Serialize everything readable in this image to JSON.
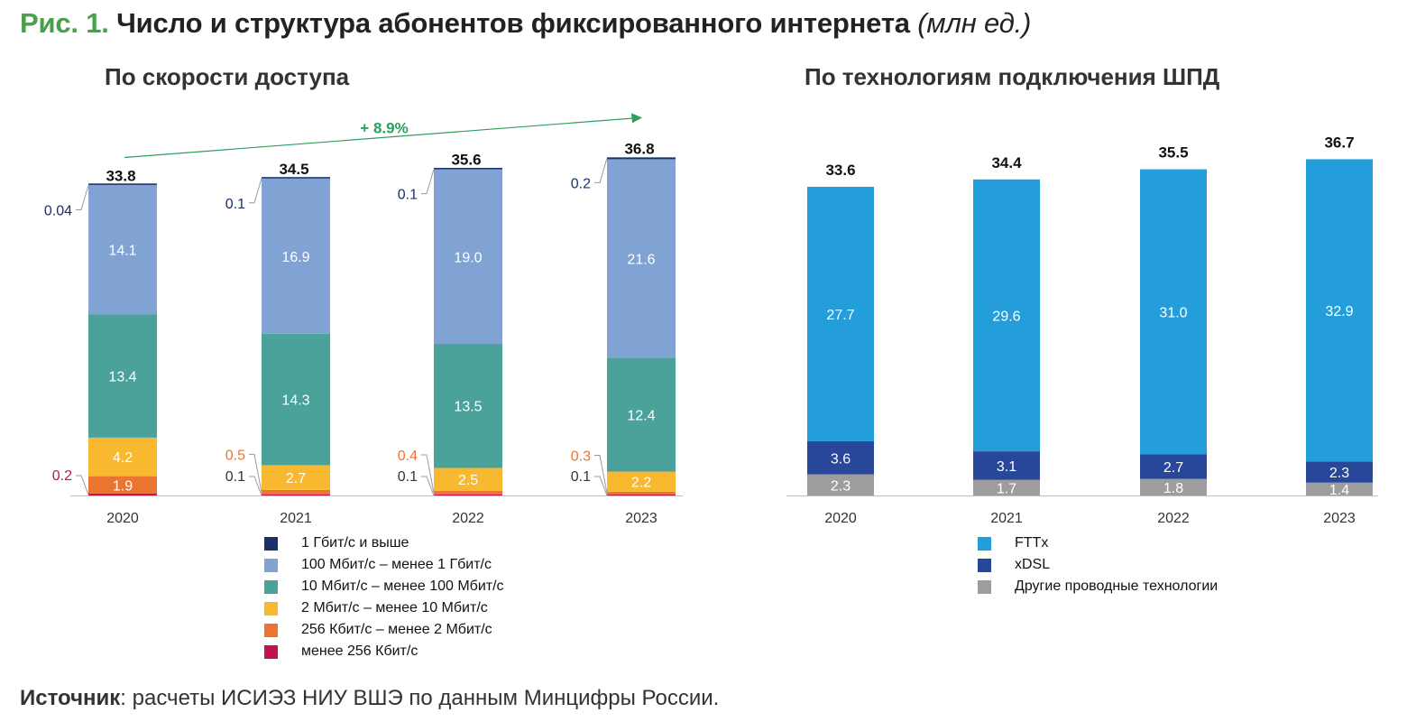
{
  "title": {
    "prefix": "Рис. 1.",
    "main": "Число и структура абонентов фиксированного интернета",
    "unit": "(млн ед.)"
  },
  "source": {
    "label": "Источник",
    "text": ": расчеты ИСИЭЗ НИУ ВШЭ по данным Минцифры России."
  },
  "chart_data": [
    {
      "type": "bar",
      "stacked": true,
      "title": "По скорости доступа",
      "categories": [
        "2020",
        "2021",
        "2022",
        "2023"
      ],
      "totals": [
        "33.8",
        "34.5",
        "35.6",
        "36.8"
      ],
      "growth_label": "+ 8.9%",
      "series": [
        {
          "name": "менее 256 Кбит/с",
          "color": "#c0134f",
          "values": [
            0.2,
            0.1,
            0.1,
            0.1
          ],
          "labels": [
            "0.2",
            "0.1",
            "0.1",
            "0.1"
          ]
        },
        {
          "name": "256 Кбит/с – менее 2 Мбит/с",
          "color": "#ec7431",
          "values": [
            1.9,
            0.5,
            0.4,
            0.3
          ],
          "labels": [
            "1.9",
            "0.5",
            "0.4",
            "0.3"
          ]
        },
        {
          "name": "2 Мбит/с – менее 10 Мбит/с",
          "color": "#f8b830",
          "values": [
            4.2,
            2.7,
            2.5,
            2.2
          ],
          "labels": [
            "4.2",
            "2.7",
            "2.5",
            "2.2"
          ]
        },
        {
          "name": "10 Мбит/с – менее 100 Мбит/с",
          "color": "#4aa29b",
          "values": [
            13.4,
            14.3,
            13.5,
            12.4
          ],
          "labels": [
            "13.4",
            "14.3",
            "13.5",
            "12.4"
          ]
        },
        {
          "name": "100 Мбит/с – менее 1 Гбит/с",
          "color": "#80a3d4",
          "values": [
            14.1,
            16.9,
            19.0,
            21.6
          ],
          "labels": [
            "14.1",
            "16.9",
            "19.0",
            "21.6"
          ]
        },
        {
          "name": "1 Гбит/с и выше",
          "color": "#1b2f6a",
          "values": [
            0.04,
            0.1,
            0.1,
            0.2
          ],
          "labels": [
            "0.04",
            "0.1",
            "0.1",
            "0.2"
          ]
        }
      ],
      "legend_order": [
        5,
        4,
        3,
        2,
        1,
        0
      ]
    },
    {
      "type": "bar",
      "stacked": true,
      "title": "По технологиям подключения ШПД",
      "categories": [
        "2020",
        "2021",
        "2022",
        "2023"
      ],
      "totals": [
        "33.6",
        "34.4",
        "35.5",
        "36.7"
      ],
      "series": [
        {
          "name": "Другие проводные технологии",
          "color": "#9d9d9d",
          "values": [
            2.3,
            1.7,
            1.8,
            1.4
          ],
          "labels": [
            "2.3",
            "1.7",
            "1.8",
            "1.4"
          ]
        },
        {
          "name": "xDSL",
          "color": "#28479a",
          "values": [
            3.6,
            3.1,
            2.7,
            2.3
          ],
          "labels": [
            "3.6",
            "3.1",
            "2.7",
            "2.3"
          ]
        },
        {
          "name": "FTTx",
          "color": "#239edb",
          "values": [
            27.7,
            29.6,
            31.0,
            32.9
          ],
          "labels": [
            "27.7",
            "29.6",
            "31.0",
            "32.9"
          ]
        }
      ],
      "legend_order": [
        2,
        1,
        0
      ]
    }
  ]
}
